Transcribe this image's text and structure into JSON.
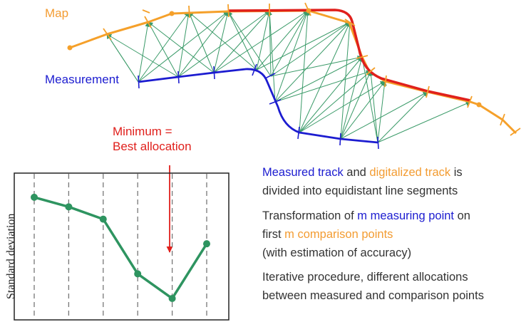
{
  "colors": {
    "map": "#f5a02a",
    "map_text": "#f39c32",
    "minimum": "#e0201c",
    "measurement": "#1c1cd0",
    "links": "#3a9a68",
    "chart_line": "#2e9460",
    "text": "#333333"
  },
  "labels": {
    "map": "Map",
    "measurement": "Measurement",
    "minimum_line1": "Minimum =",
    "minimum_line2": "Best allocation"
  },
  "notes": {
    "n1_a": "Measured track",
    "n1_b": " and ",
    "n1_c": "digitalized track",
    "n1_d": " is",
    "n1_e": "divided into equidistant line segments",
    "n2_a": "Transformation of ",
    "n2_b": "m measuring point",
    "n2_c": " on",
    "n2_d": "first ",
    "n2_e": "m comparison points",
    "n2_f": "(with estimation of accuracy)",
    "n3_a": "Iterative procedure, different allocations",
    "n3_b": "between measured and comparison points"
  },
  "chart_data": {
    "type": "line",
    "ylabel": "Standard deviation",
    "xlabel": "",
    "x": [
      1,
      2,
      3,
      4,
      5,
      6
    ],
    "series": [
      {
        "values": [
          8.6,
          7.9,
          7.0,
          3.0,
          1.2,
          5.2
        ]
      }
    ],
    "ylim": [
      0,
      10
    ],
    "grid": "vertical dashed lines at each allocation",
    "minimum_index": 4
  }
}
